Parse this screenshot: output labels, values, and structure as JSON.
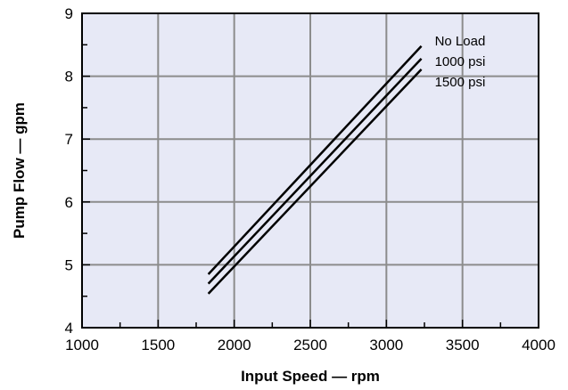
{
  "chart_data": {
    "type": "line",
    "title": "",
    "xlabel": "Input Speed — rpm",
    "ylabel": "Pump Flow — gpm",
    "xlim": [
      1000,
      4000
    ],
    "ylim": [
      4,
      9
    ],
    "x_ticks": [
      "1000",
      "1500",
      "2000",
      "2500",
      "3000",
      "3500",
      "4000"
    ],
    "y_ticks": [
      "4",
      "5",
      "6",
      "7",
      "8",
      "9"
    ],
    "grid": true,
    "colors": {
      "plot_background": "#e7e9f6",
      "grid": "#8c8c8c",
      "line": "#000000"
    },
    "series": [
      {
        "name": "No Load",
        "x": [
          1830,
          3230
        ],
        "y": [
          4.85,
          8.48
        ]
      },
      {
        "name": "1000 psi",
        "x": [
          1830,
          3230
        ],
        "y": [
          4.7,
          8.28
        ]
      },
      {
        "name": "1500 psi",
        "x": [
          1830,
          3230
        ],
        "y": [
          4.54,
          8.11
        ]
      }
    ]
  }
}
